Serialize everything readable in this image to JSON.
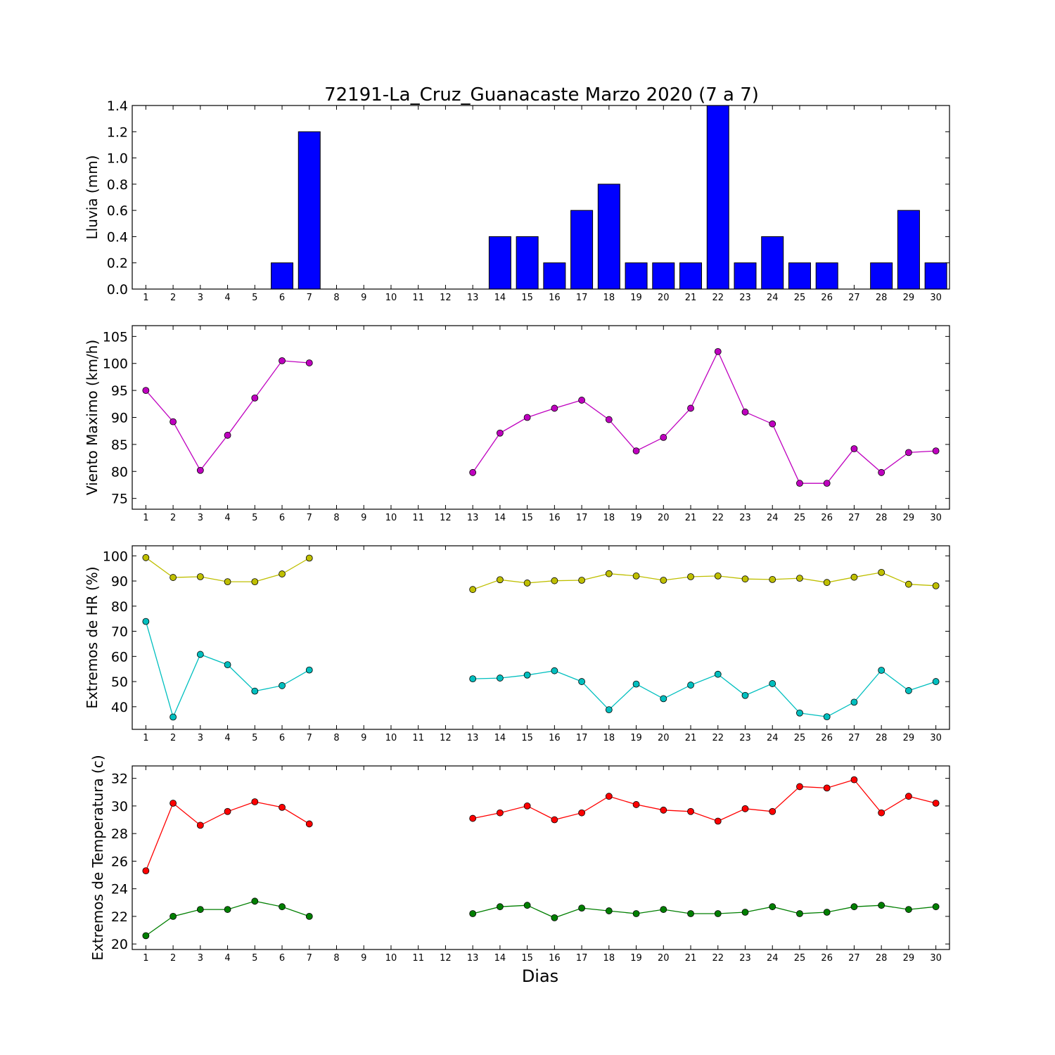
{
  "figure": {
    "title": "72191-La_Cruz_Guanacaste Marzo 2020  (7 a 7)",
    "xlabel": "Dias"
  },
  "chart_data": [
    {
      "type": "bar",
      "ylabel": "Lluvia (mm)",
      "x": [
        1,
        2,
        3,
        4,
        5,
        6,
        7,
        8,
        9,
        10,
        11,
        12,
        13,
        14,
        15,
        16,
        17,
        18,
        19,
        20,
        21,
        22,
        23,
        24,
        25,
        26,
        27,
        28,
        29,
        30
      ],
      "xticks": [
        "1",
        "2",
        "3",
        "4",
        "5",
        "6",
        "7",
        "8",
        "9",
        "10",
        "11",
        "12",
        "13",
        "14",
        "15",
        "16",
        "17",
        "18",
        "19",
        "20",
        "21",
        "22",
        "23",
        "24",
        "25",
        "26",
        "27",
        "28",
        "29",
        "30"
      ],
      "ylim": [
        0.0,
        1.4
      ],
      "yticks": [
        0.0,
        0.2,
        0.4,
        0.6,
        0.8,
        1.0,
        1.2,
        1.4
      ],
      "ytick_labels": [
        "0.0",
        "0.2",
        "0.4",
        "0.6",
        "0.8",
        "1.0",
        "1.2",
        "1.4"
      ],
      "series": [
        {
          "color": "#0000ff",
          "values": [
            0,
            0,
            0,
            0,
            0,
            0.2,
            1.2,
            0,
            0,
            0,
            0,
            0,
            0,
            0.4,
            0.4,
            0.2,
            0.6,
            0.8,
            0.2,
            0.2,
            0.2,
            1.4,
            0.2,
            0.4,
            0.2,
            0.2,
            0,
            0.2,
            0.6,
            0.2
          ]
        }
      ]
    },
    {
      "type": "line",
      "ylabel": "Viento Maximo (km/h)",
      "x": [
        1,
        2,
        3,
        4,
        5,
        6,
        7,
        8,
        9,
        10,
        11,
        12,
        13,
        14,
        15,
        16,
        17,
        18,
        19,
        20,
        21,
        22,
        23,
        24,
        25,
        26,
        27,
        28,
        29,
        30
      ],
      "xticks": [
        "1",
        "2",
        "3",
        "4",
        "5",
        "6",
        "7",
        "8",
        "9",
        "10",
        "11",
        "12",
        "13",
        "14",
        "15",
        "16",
        "17",
        "18",
        "19",
        "20",
        "21",
        "22",
        "23",
        "24",
        "25",
        "26",
        "27",
        "28",
        "29",
        "30"
      ],
      "ylim": [
        73,
        107
      ],
      "yticks": [
        75,
        80,
        85,
        90,
        95,
        100,
        105
      ],
      "ytick_labels": [
        "75",
        "80",
        "85",
        "90",
        "95",
        "100",
        "105"
      ],
      "series": [
        {
          "color": "#bf00bf",
          "values": [
            95.0,
            89.2,
            80.2,
            86.7,
            93.6,
            100.5,
            100.1,
            null,
            null,
            null,
            null,
            null,
            79.8,
            87.1,
            90.0,
            91.7,
            93.2,
            89.6,
            83.8,
            86.3,
            91.7,
            102.2,
            91.0,
            88.8,
            77.8,
            77.8,
            84.2,
            79.8,
            83.5,
            83.8
          ]
        }
      ]
    },
    {
      "type": "line",
      "ylabel": "Extremos de HR (%)",
      "x": [
        1,
        2,
        3,
        4,
        5,
        6,
        7,
        8,
        9,
        10,
        11,
        12,
        13,
        14,
        15,
        16,
        17,
        18,
        19,
        20,
        21,
        22,
        23,
        24,
        25,
        26,
        27,
        28,
        29,
        30
      ],
      "xticks": [
        "1",
        "2",
        "3",
        "4",
        "5",
        "6",
        "7",
        "8",
        "9",
        "10",
        "11",
        "12",
        "13",
        "14",
        "15",
        "16",
        "17",
        "18",
        "19",
        "20",
        "21",
        "22",
        "23",
        "24",
        "25",
        "26",
        "27",
        "28",
        "29",
        "30"
      ],
      "ylim": [
        31,
        104
      ],
      "yticks": [
        40,
        50,
        60,
        70,
        80,
        90,
        100
      ],
      "ytick_labels": [
        "40",
        "50",
        "60",
        "70",
        "80",
        "90",
        "100"
      ],
      "series": [
        {
          "color": "#bfbf00",
          "values": [
            99.3,
            91.4,
            91.7,
            89.7,
            89.7,
            92.8,
            99.1,
            null,
            null,
            null,
            null,
            null,
            86.6,
            90.5,
            89.2,
            90.1,
            90.3,
            92.9,
            92.0,
            90.3,
            91.7,
            92.0,
            90.8,
            90.6,
            91.1,
            89.4,
            91.5,
            93.4,
            88.7,
            88.1
          ]
        },
        {
          "color": "#00bfbf",
          "values": [
            73.9,
            35.9,
            60.8,
            56.7,
            46.2,
            48.4,
            54.6,
            null,
            null,
            null,
            null,
            null,
            51.1,
            51.4,
            52.6,
            54.3,
            50.0,
            38.8,
            49.0,
            43.2,
            48.6,
            52.9,
            44.5,
            49.2,
            37.5,
            36.0,
            41.8,
            54.5,
            46.4,
            50.0
          ]
        }
      ]
    },
    {
      "type": "line",
      "ylabel": "Extremos de Temperatura (c)",
      "x": [
        1,
        2,
        3,
        4,
        5,
        6,
        7,
        8,
        9,
        10,
        11,
        12,
        13,
        14,
        15,
        16,
        17,
        18,
        19,
        20,
        21,
        22,
        23,
        24,
        25,
        26,
        27,
        28,
        29,
        30
      ],
      "xticks": [
        "1",
        "2",
        "3",
        "4",
        "5",
        "6",
        "7",
        "8",
        "9",
        "10",
        "11",
        "12",
        "13",
        "14",
        "15",
        "16",
        "17",
        "18",
        "19",
        "20",
        "21",
        "22",
        "23",
        "24",
        "25",
        "26",
        "27",
        "28",
        "29",
        "30"
      ],
      "ylim": [
        19.6,
        32.9
      ],
      "yticks": [
        20,
        22,
        24,
        26,
        28,
        30,
        32
      ],
      "ytick_labels": [
        "20",
        "22",
        "24",
        "26",
        "28",
        "30",
        "32"
      ],
      "series": [
        {
          "color": "#ff0000",
          "values": [
            25.3,
            30.2,
            28.6,
            29.6,
            30.3,
            29.9,
            28.7,
            null,
            null,
            null,
            null,
            null,
            29.1,
            29.5,
            30.0,
            29.0,
            29.5,
            30.7,
            30.1,
            29.7,
            29.6,
            28.9,
            29.8,
            29.6,
            31.4,
            31.3,
            31.9,
            29.5,
            30.7,
            30.2
          ]
        },
        {
          "color": "#007f00",
          "values": [
            20.6,
            22.0,
            22.5,
            22.5,
            23.1,
            22.7,
            22.0,
            null,
            null,
            null,
            null,
            null,
            22.2,
            22.7,
            22.8,
            21.9,
            22.6,
            22.4,
            22.2,
            22.5,
            22.2,
            22.2,
            22.3,
            22.7,
            22.2,
            22.3,
            22.7,
            22.8,
            22.5,
            22.7
          ]
        }
      ]
    }
  ]
}
